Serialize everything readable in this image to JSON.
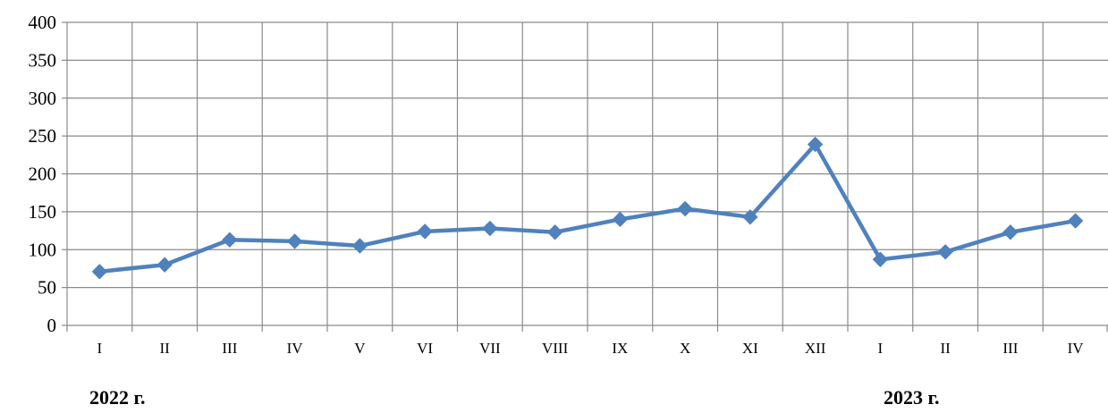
{
  "chart_data": {
    "type": "line",
    "categories": [
      "I",
      "II",
      "III",
      "IV",
      "V",
      "VI",
      "VII",
      "VIII",
      "IX",
      "X",
      "XI",
      "XII",
      "I",
      "II",
      "III",
      "IV"
    ],
    "series": [
      {
        "values": [
          71,
          80,
          113,
          111,
          105,
          124,
          128,
          123,
          140,
          154,
          143,
          239,
          87,
          97,
          123,
          138
        ],
        "color": "#4f81bd",
        "marker": "diamond"
      }
    ],
    "ylim": [
      0,
      400
    ],
    "yticks": [
      0,
      50,
      100,
      150,
      200,
      250,
      300,
      350,
      400
    ],
    "grid": true,
    "year_labels": [
      "2022 г.",
      "2023 г."
    ]
  }
}
